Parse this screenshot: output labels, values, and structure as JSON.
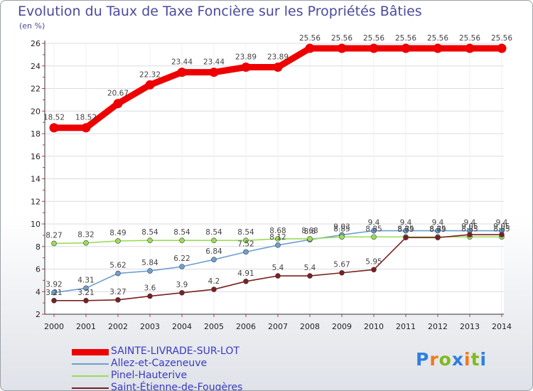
{
  "chart_data": {
    "type": "line",
    "title": "Evolution du Taux de Taxe Foncière sur les Propriétés Bâties",
    "ylabel": "(en %)",
    "xlabel": "",
    "ylim": [
      2,
      26
    ],
    "yticks": [
      "2",
      "4",
      "6",
      "8",
      "10",
      "12",
      "14",
      "16",
      "18",
      "20",
      "22",
      "24",
      "26"
    ],
    "categories": [
      "2000",
      "2001",
      "2002",
      "2003",
      "2004",
      "2005",
      "2006",
      "2007",
      "2008",
      "2009",
      "2010",
      "2011",
      "2012",
      "2013",
      "2014"
    ],
    "series": [
      {
        "name": "SAINTE-LIVRADE-SUR-LOT",
        "color": "#ee0000",
        "values": [
          18.52,
          18.52,
          20.67,
          22.32,
          23.44,
          23.44,
          23.89,
          23.89,
          25.56,
          25.56,
          25.56,
          25.56,
          25.56,
          25.56,
          25.56
        ],
        "labels": [
          "18.52",
          "18.52",
          "20.67",
          "22.32",
          "23.44",
          "23.44",
          "23.89",
          "23.89",
          "25.56",
          "25.56",
          "25.56",
          "25.56",
          "25.56",
          "25.56",
          "25.56"
        ]
      },
      {
        "name": "Allez-et-Cazeneuve",
        "color": "#6f9fd0",
        "values": [
          3.92,
          4.31,
          5.62,
          5.84,
          6.22,
          6.84,
          7.52,
          8.12,
          8.6,
          9.03,
          9.4,
          9.4,
          9.4,
          9.4,
          9.4
        ],
        "labels": [
          "3.92",
          "4.31",
          "5.62",
          "5.84",
          "6.22",
          "6.84",
          "7.52",
          "8.12",
          "8.6",
          "9.03",
          "9.4",
          "9.4",
          "9.4",
          "9.4",
          "9.4"
        ]
      },
      {
        "name": "Pinel-Hauterive",
        "color": "#99dd55",
        "values": [
          8.27,
          8.32,
          8.49,
          8.54,
          8.54,
          8.54,
          8.54,
          8.68,
          8.68,
          8.85,
          8.85,
          8.85,
          8.85,
          8.85,
          8.85
        ],
        "labels": [
          "8.27",
          "8.32",
          "8.49",
          "8.54",
          "8.54",
          "8.54",
          "8.54",
          "8.68",
          "8.68",
          "8.85",
          "8.85",
          "8.85",
          "8.85",
          "8.85",
          "8.85"
        ]
      },
      {
        "name": "Saint-Étienne-de-Fougères",
        "color": "#7a2020",
        "values": [
          3.21,
          3.21,
          3.27,
          3.6,
          3.9,
          4.2,
          4.91,
          5.4,
          5.4,
          5.67,
          5.95,
          8.79,
          8.79,
          9.05,
          9.05
        ],
        "labels": [
          "3.21",
          "3.21",
          "3.27",
          "3.6",
          "3.9",
          "4.2",
          "4.91",
          "5.4",
          "5.4",
          "5.67",
          "5.95",
          "8.79",
          "8.79",
          "9.05",
          "9.05"
        ]
      }
    ]
  },
  "logo": {
    "text": "Proxiti",
    "letter_colors": [
      "#2f7ee0",
      "#f07a1a",
      "#7fba1e",
      "#2f7ee0",
      "#f07a1a",
      "#7fba1e",
      "#2f7ee0"
    ]
  }
}
